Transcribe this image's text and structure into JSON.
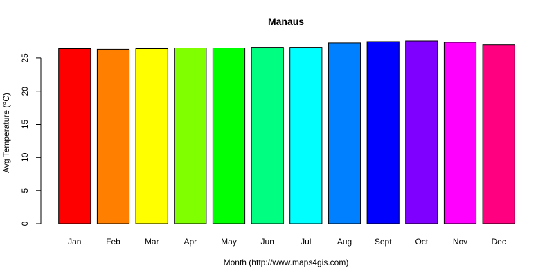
{
  "chart_data": {
    "type": "bar",
    "title": "Manaus",
    "xlabel": "Month (http://www.maps4gis.com)",
    "ylabel": "Avg Temperature (°C)",
    "ylim": [
      0,
      27.6
    ],
    "yticks": [
      0,
      5,
      10,
      15,
      20,
      25
    ],
    "categories": [
      "Jan",
      "Feb",
      "Mar",
      "Apr",
      "May",
      "Jun",
      "Jul",
      "Aug",
      "Sept",
      "Oct",
      "Nov",
      "Dec"
    ],
    "values": [
      26.4,
      26.3,
      26.4,
      26.5,
      26.5,
      26.6,
      26.6,
      27.3,
      27.5,
      27.6,
      27.4,
      27.0
    ],
    "colors": [
      "#FF0000",
      "#FF8000",
      "#FFFF00",
      "#80FF00",
      "#00FF00",
      "#00FF80",
      "#00FFFF",
      "#0080FF",
      "#0000FF",
      "#8000FF",
      "#FF00FF",
      "#FF0080"
    ],
    "grid": false,
    "legend": "none"
  }
}
